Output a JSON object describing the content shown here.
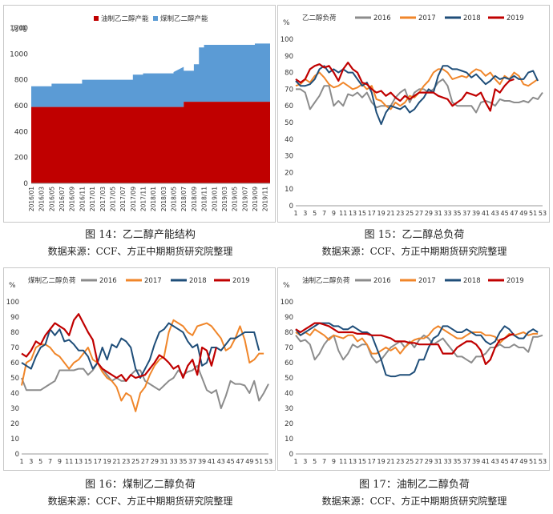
{
  "colors": {
    "y2016": "#8c8c8c",
    "y2017": "#f0862a",
    "y2018": "#1f4e79",
    "y2019": "#c00000",
    "oilCap": "#c00000",
    "coalCap": "#5b9bd5"
  },
  "captions": [
    {
      "title": "图 14：乙二醇产能结构",
      "source": "数据来源：CCF、方正中期期货研究院整理"
    },
    {
      "title": "图 15：乙二醇总负荷",
      "source": "数据来源：CCF、方正中期期货研究院整理"
    },
    {
      "title": "图 16：煤制乙二醇负荷",
      "source": "数据来源：CCF、方正中期期货研究院整理"
    },
    {
      "title": "图 17：油制乙二醇负荷",
      "source": "数据来源：CCF、方正中期期货研究院整理"
    }
  ],
  "chart_data": [
    {
      "type": "area",
      "ylabel": "万吨",
      "ylim": [
        0,
        1200
      ],
      "yticks": [
        0,
        200,
        400,
        600,
        800,
        1000,
        1200
      ],
      "xticklabels": [
        "2016/01",
        "2016/03",
        "2016/05",
        "2016/07",
        "2016/09",
        "2016/11",
        "2017/01",
        "2017/03",
        "2017/05",
        "2017/07",
        "2017/09",
        "2017/11",
        "2018/01",
        "2018/03",
        "2018/05",
        "2018/07",
        "2018/09",
        "2018/11",
        "2019/01",
        "2019/03",
        "2019/05",
        "2019/07",
        "2019/09",
        "2019/11"
      ],
      "legend": [
        "油制乙二醇产能",
        "煤制乙二醇产能"
      ],
      "series": [
        {
          "name": "油制乙二醇产能",
          "x": [
            0,
            30,
            30,
            47
          ],
          "values": [
            590,
            590,
            630,
            630
          ]
        },
        {
          "name": "煤制乙二醇产能",
          "x": [
            0,
            4,
            4,
            10,
            10,
            20,
            20,
            22,
            22,
            27,
            27,
            28,
            28,
            30,
            30,
            32,
            32,
            33,
            33,
            34,
            34,
            44,
            44,
            47
          ],
          "values": [
            160,
            160,
            180,
            180,
            210,
            210,
            250,
            250,
            260,
            260,
            260,
            260,
            270,
            270,
            240,
            240,
            290,
            290,
            420,
            420,
            440,
            440,
            450,
            450
          ]
        }
      ]
    },
    {
      "type": "line",
      "title": "乙二醇负荷",
      "ylabel": "%",
      "ylim": [
        0,
        100
      ],
      "yticks": [
        0,
        10,
        20,
        30,
        40,
        50,
        60,
        70,
        80,
        90,
        100
      ],
      "xticks": [
        1,
        3,
        5,
        7,
        9,
        11,
        13,
        15,
        17,
        19,
        21,
        23,
        25,
        27,
        29,
        31,
        33,
        35,
        37,
        39,
        41,
        43,
        45,
        47,
        49,
        51,
        53
      ],
      "series": [
        {
          "name": "2016",
          "values": [
            70,
            70,
            68,
            58,
            62,
            66,
            72,
            72,
            60,
            63,
            60,
            67,
            66,
            68,
            65,
            68,
            62,
            59,
            60,
            60,
            60,
            65,
            68,
            70,
            62,
            68,
            70,
            70,
            68,
            70,
            74,
            76,
            72,
            62,
            60,
            60,
            60,
            60,
            56,
            62,
            63,
            62,
            60,
            64,
            63,
            63,
            62,
            62,
            63,
            62,
            65,
            64,
            68
          ]
        },
        {
          "name": "2017",
          "values": [
            72,
            73,
            76,
            74,
            78,
            80,
            77,
            73,
            71,
            72,
            74,
            72,
            70,
            71,
            73,
            70,
            72,
            64,
            63,
            60,
            58,
            62,
            60,
            62,
            66,
            65,
            68,
            72,
            75,
            80,
            82,
            82,
            80,
            76,
            77,
            78,
            77,
            80,
            82,
            81,
            78,
            80,
            76,
            73,
            78,
            76,
            80,
            78,
            73,
            72,
            74,
            76,
            null
          ]
        },
        {
          "name": "2018",
          "values": [
            75,
            72,
            72,
            73,
            76,
            82,
            84,
            80,
            82,
            80,
            82,
            80,
            80,
            76,
            72,
            74,
            68,
            56,
            49,
            56,
            60,
            59,
            58,
            60,
            56,
            58,
            62,
            65,
            70,
            68,
            78,
            84,
            84,
            82,
            82,
            81,
            80,
            77,
            79,
            76,
            73,
            75,
            78,
            76,
            77,
            76,
            78,
            76,
            76,
            80,
            81,
            75,
            null
          ]
        },
        {
          "name": "2019",
          "values": [
            76,
            74,
            76,
            82,
            84,
            85,
            83,
            84,
            80,
            75,
            82,
            86,
            82,
            80,
            74,
            73,
            70,
            68,
            69,
            66,
            68,
            65,
            63,
            66,
            64,
            66,
            68,
            68,
            68,
            68,
            66,
            65,
            64,
            60,
            62,
            64,
            68,
            67,
            66,
            68,
            62,
            57,
            70,
            68,
            72,
            75,
            76,
            null,
            null,
            null,
            null,
            null,
            null
          ]
        }
      ]
    },
    {
      "type": "line",
      "title": "煤制乙二醇负荷",
      "ylabel": "%",
      "ylim": [
        0,
        100
      ],
      "yticks": [
        0,
        10,
        20,
        30,
        40,
        50,
        60,
        70,
        80,
        90,
        100
      ],
      "xticks": [
        1,
        3,
        5,
        7,
        9,
        11,
        13,
        15,
        17,
        19,
        21,
        23,
        25,
        27,
        29,
        31,
        33,
        35,
        37,
        39,
        41,
        43,
        45,
        47,
        49,
        51,
        53
      ],
      "series": [
        {
          "name": "2016",
          "values": [
            50,
            42,
            42,
            42,
            42,
            44,
            46,
            48,
            55,
            55,
            55,
            55,
            56,
            56,
            52,
            55,
            60,
            56,
            52,
            48,
            50,
            48,
            48,
            52,
            55,
            55,
            48,
            46,
            44,
            42,
            45,
            48,
            50,
            55,
            52,
            54,
            55,
            58,
            50,
            42,
            40,
            42,
            30,
            38,
            48,
            46,
            46,
            45,
            40,
            48,
            35,
            40,
            46
          ]
        },
        {
          "name": "2017",
          "values": [
            45,
            60,
            62,
            70,
            72,
            72,
            70,
            66,
            64,
            60,
            56,
            60,
            62,
            66,
            70,
            62,
            60,
            54,
            50,
            48,
            44,
            35,
            40,
            38,
            28,
            40,
            44,
            52,
            58,
            62,
            64,
            80,
            88,
            86,
            84,
            80,
            78,
            84,
            85,
            86,
            84,
            80,
            76,
            68,
            70,
            76,
            84,
            75,
            60,
            62,
            66,
            66,
            null
          ]
        },
        {
          "name": "2018",
          "values": [
            60,
            58,
            56,
            64,
            70,
            72,
            82,
            78,
            82,
            74,
            75,
            72,
            68,
            68,
            64,
            56,
            60,
            70,
            62,
            72,
            70,
            76,
            74,
            70,
            56,
            50,
            56,
            62,
            72,
            80,
            82,
            86,
            84,
            82,
            80,
            74,
            70,
            72,
            58,
            60,
            70,
            70,
            68,
            72,
            76,
            76,
            78,
            80,
            80,
            80,
            68,
            null,
            null
          ]
        },
        {
          "name": "2019",
          "values": [
            66,
            64,
            68,
            74,
            72,
            78,
            82,
            86,
            84,
            82,
            78,
            88,
            92,
            86,
            80,
            75,
            60,
            56,
            54,
            52,
            50,
            52,
            48,
            52,
            50,
            51,
            52,
            56,
            60,
            65,
            63,
            60,
            56,
            58,
            50,
            58,
            62,
            52,
            70,
            68,
            58,
            70,
            null,
            null,
            null,
            null,
            null,
            null,
            null,
            null,
            null,
            null,
            null
          ]
        }
      ]
    },
    {
      "type": "line",
      "title": "油制乙二醇负荷",
      "ylabel": "%",
      "ylim": [
        0,
        100
      ],
      "yticks": [
        0,
        10,
        20,
        30,
        40,
        50,
        60,
        70,
        80,
        90,
        100
      ],
      "xticks": [
        1,
        3,
        5,
        7,
        9,
        11,
        13,
        15,
        17,
        19,
        21,
        23,
        25,
        27,
        29,
        31,
        33,
        35,
        37,
        39,
        41,
        43,
        45,
        47,
        49,
        51,
        53
      ],
      "series": [
        {
          "name": "2016",
          "values": [
            78,
            74,
            75,
            72,
            62,
            66,
            72,
            76,
            78,
            68,
            62,
            66,
            72,
            70,
            72,
            72,
            64,
            60,
            62,
            66,
            70,
            72,
            74,
            70,
            74,
            70,
            75,
            78,
            76,
            72,
            74,
            76,
            72,
            68,
            64,
            64,
            62,
            60,
            64,
            64,
            66,
            70,
            70,
            72,
            70,
            70,
            72,
            70,
            70,
            67,
            77,
            77,
            78
          ]
        },
        {
          "name": "2017",
          "values": [
            80,
            78,
            80,
            78,
            82,
            80,
            78,
            75,
            78,
            77,
            76,
            78,
            78,
            74,
            76,
            72,
            66,
            66,
            68,
            70,
            68,
            70,
            66,
            70,
            73,
            75,
            76,
            76,
            78,
            82,
            84,
            82,
            80,
            78,
            76,
            76,
            78,
            80,
            80,
            80,
            78,
            78,
            77,
            73,
            76,
            79,
            78,
            79,
            80,
            78,
            79,
            79,
            null
          ]
        },
        {
          "name": "2018",
          "values": [
            82,
            78,
            80,
            82,
            84,
            86,
            86,
            86,
            84,
            84,
            82,
            82,
            84,
            82,
            80,
            80,
            78,
            70,
            62,
            52,
            51,
            51,
            52,
            52,
            52,
            54,
            62,
            62,
            70,
            76,
            78,
            84,
            84,
            82,
            80,
            80,
            82,
            80,
            78,
            78,
            74,
            72,
            74,
            80,
            84,
            82,
            78,
            76,
            76,
            80,
            82,
            80,
            null
          ]
        },
        {
          "name": "2019",
          "values": [
            82,
            80,
            82,
            84,
            86,
            86,
            85,
            84,
            82,
            80,
            80,
            80,
            80,
            79,
            79,
            79,
            78,
            78,
            78,
            77,
            76,
            74,
            74,
            74,
            73,
            73,
            72,
            72,
            72,
            72,
            72,
            66,
            66,
            66,
            70,
            72,
            74,
            74,
            72,
            68,
            59,
            62,
            70,
            75,
            76,
            78,
            79,
            null,
            null,
            null,
            null,
            null,
            null
          ]
        }
      ]
    }
  ]
}
